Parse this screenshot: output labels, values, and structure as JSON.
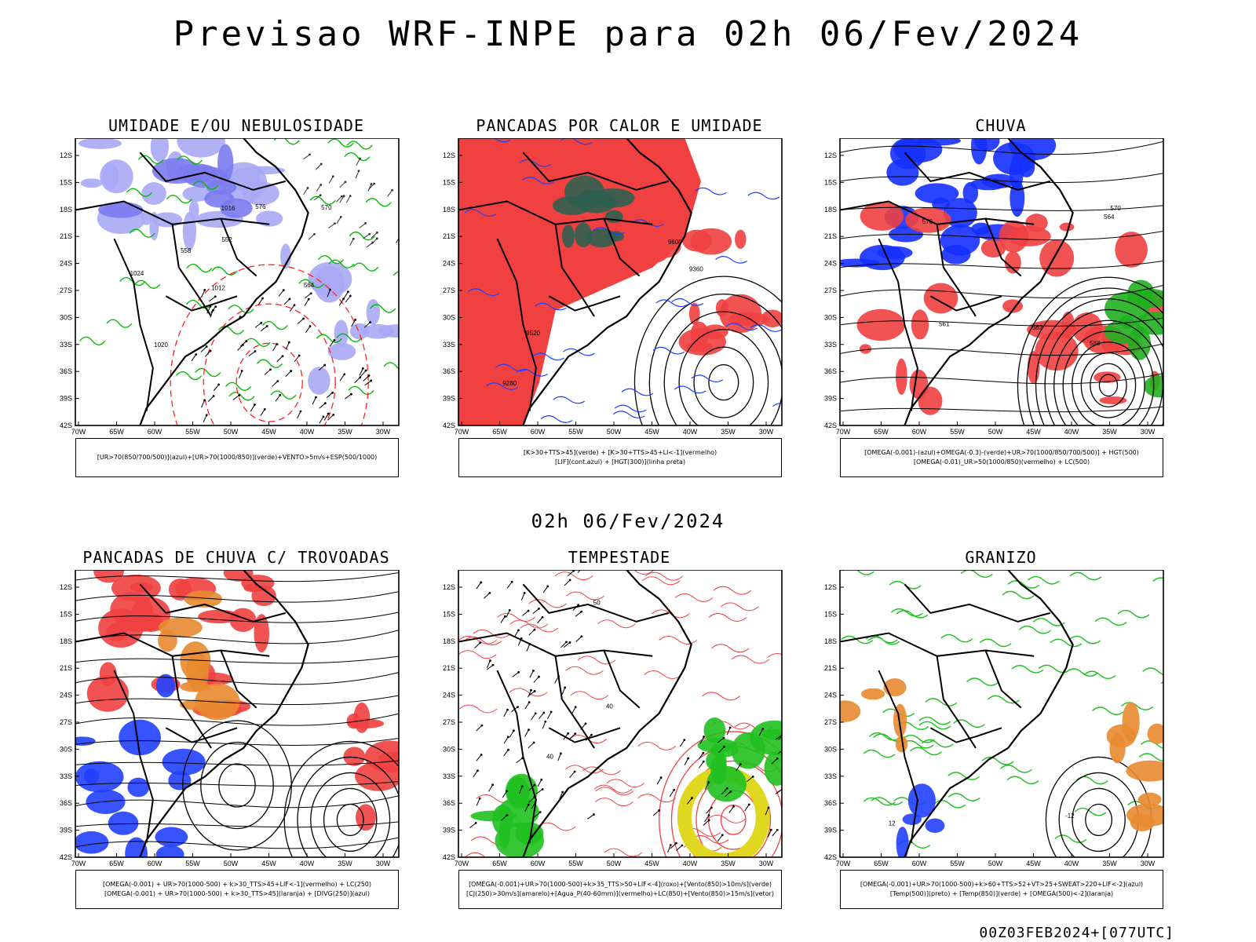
{
  "header": {
    "title": "Previsao WRF-INPE  para 02h 06/Fev/2024",
    "subtitle": "02h 06/Fev/2024",
    "run_info": "00Z03FEB2024+[077UTC]"
  },
  "axes": {
    "lat_ticks": [
      "12S",
      "15S",
      "18S",
      "21S",
      "24S",
      "27S",
      "30S",
      "33S",
      "36S",
      "39S",
      "42S"
    ],
    "lon_ticks": [
      "70W",
      "65W",
      "60W",
      "55W",
      "50W",
      "45W",
      "40W",
      "35W",
      "30W"
    ]
  },
  "panels": [
    {
      "id": "umidade",
      "title": "UMIDADE E/OU NEBULOSIDADE",
      "legend": [
        "[UR>70(850/700/500)](azul)+[UR>70(1000/850)](verde)+VENTO>5m/s+ESP(500/1000)"
      ],
      "labels": [
        "1012",
        "1016",
        "1020",
        "1024",
        "576",
        "570",
        "564",
        "558",
        "552"
      ],
      "colors": {
        "fill_a": "#a9a9f5",
        "fill_b": "#7b7bf0",
        "line_a": "#00bb00",
        "line_b": "#ff2020"
      }
    },
    {
      "id": "pancadas_calor",
      "title": "PANCADAS POR CALOR E UMIDADE",
      "legend": [
        "[K>30+TTS>45](verde)  +  [K>30+TTS>45+LI<-1](vermelho)",
        "[LIF](cont.azul)  +  [HGT(300)](linha preta)"
      ],
      "labels": [
        "9600",
        "9520",
        "9360",
        "9280"
      ],
      "colors": {
        "fill_a": "#f04040",
        "fill_b": "#2f5f50",
        "line_a": "#2040ff",
        "line_b": "#000000"
      }
    },
    {
      "id": "chuva",
      "title": "CHUVA",
      "legend": [
        "[OMEGA(-0.001)-(azul)+OMEGA(-0.3)-(verde)+UR>70(1000/850/700/500)]  +  HGT(500)",
        "[OMEGA(-0.01)_UR>50(1000/850)(vermelho)  +  LC(500)"
      ],
      "labels": [
        "588",
        "582",
        "576",
        "570",
        "564",
        "561"
      ],
      "colors": {
        "fill_a": "#1530ff",
        "fill_b": "#f04040",
        "line_a": "#20b020",
        "line_b": "#000000"
      }
    },
    {
      "id": "trovoadas",
      "title": "PANCADAS DE CHUVA C/ TROVOADAS",
      "legend": [
        "[OMEGA(-0.001)  +  UR>70(1000-500)  +  k>30_TTS>45+LIF<-1](vermelho)  +  LC(250)",
        "[OMEGA(-0.001)  +  UR>70(1000-500)  +  k>30_TTS>45](laranja)  +  [DIVG(250)](azul)"
      ],
      "labels": [],
      "colors": {
        "fill_a": "#f04040",
        "fill_b": "#e88a30",
        "line_a": "#2040ff",
        "line_b": "#000000"
      }
    },
    {
      "id": "tempestade",
      "title": "TEMPESTADE",
      "legend": [
        "[OMEGA(-0.001)+UR>70(1000-500)+k>35_TTS>50+LIF<-4](roxo)+[Vento(850)>10m/s](verde)",
        "[CJ(250)>30m/s](amarelo)+[Agua_P(40-60mm)](vermelho)+LC(850)+[Vento(850)>15m/s](vetor)"
      ],
      "labels": [
        "40",
        "50",
        "40"
      ],
      "colors": {
        "fill_a": "#20c020",
        "fill_b": "#e0d820",
        "line_a": "#f04040",
        "line_b": "#000000"
      }
    },
    {
      "id": "granizo",
      "title": "GRANIZO",
      "legend": [
        "[OMEGA(-0.001)+UR>70(1000-500)+k>60+TTS>52+VT>25+SWEAT>220+LIF<-2](azul)",
        "[Temp(500)](preto)  +  [Temp(850)](verde)  +  [OMEGA(500)<-2](laranja)"
      ],
      "labels": [
        "12",
        "-12"
      ],
      "colors": {
        "fill_a": "#e88a30",
        "fill_b": "#2040ff",
        "line_a": "#20c020",
        "line_b": "#000000"
      }
    }
  ]
}
